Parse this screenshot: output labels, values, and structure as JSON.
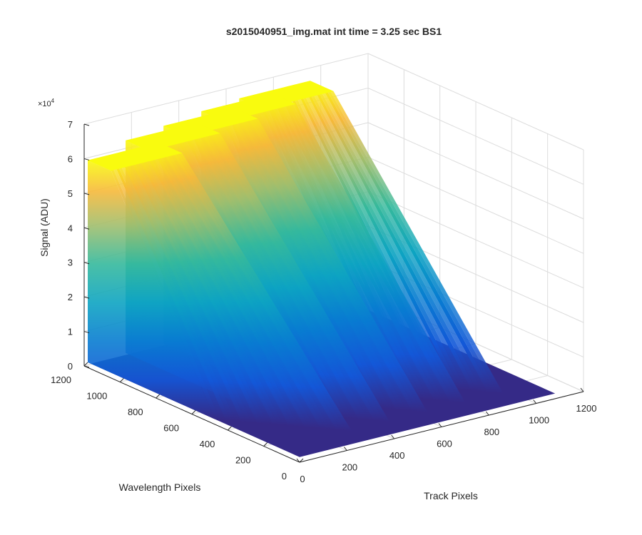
{
  "chart_data": {
    "type": "surface",
    "title": "s2015040951_img.mat int time = 3.25 sec   BS1",
    "xlabel": "Track Pixels",
    "ylabel": "Wavelength Pixels",
    "zlabel": "Signal (ADU)",
    "xlim": [
      0,
      1200
    ],
    "ylim": [
      0,
      1200
    ],
    "zlim": [
      0,
      70000
    ],
    "x_ticks": [
      "0",
      "200",
      "400",
      "600",
      "800",
      "1000",
      "1200"
    ],
    "y_ticks": [
      "0",
      "200",
      "400",
      "600",
      "800",
      "1000",
      "1200"
    ],
    "z_ticks": [
      "0",
      "1",
      "2",
      "3",
      "4",
      "5",
      "6",
      "7"
    ],
    "z_multiplier": "×10",
    "z_exponent": "4",
    "grid": true,
    "colormap": "parula",
    "series": [
      {
        "x_start": 0,
        "x_end": 300,
        "peak": 60000,
        "edge_steepness": 0.55
      },
      {
        "x_start": 160,
        "x_end": 460,
        "peak": 63000,
        "edge_steepness": 0.55
      },
      {
        "x_start": 320,
        "x_end": 620,
        "peak": 64500,
        "edge_steepness": 0.55
      },
      {
        "x_start": 480,
        "x_end": 780,
        "peak": 66000,
        "edge_steepness": 0.55
      },
      {
        "x_start": 640,
        "x_end": 940,
        "peak": 67000,
        "edge_steepness": 0.55
      }
    ],
    "plateau_y_range": [
      1050,
      1180
    ],
    "floor_x_end": 1080,
    "floor_value": 1500
  }
}
